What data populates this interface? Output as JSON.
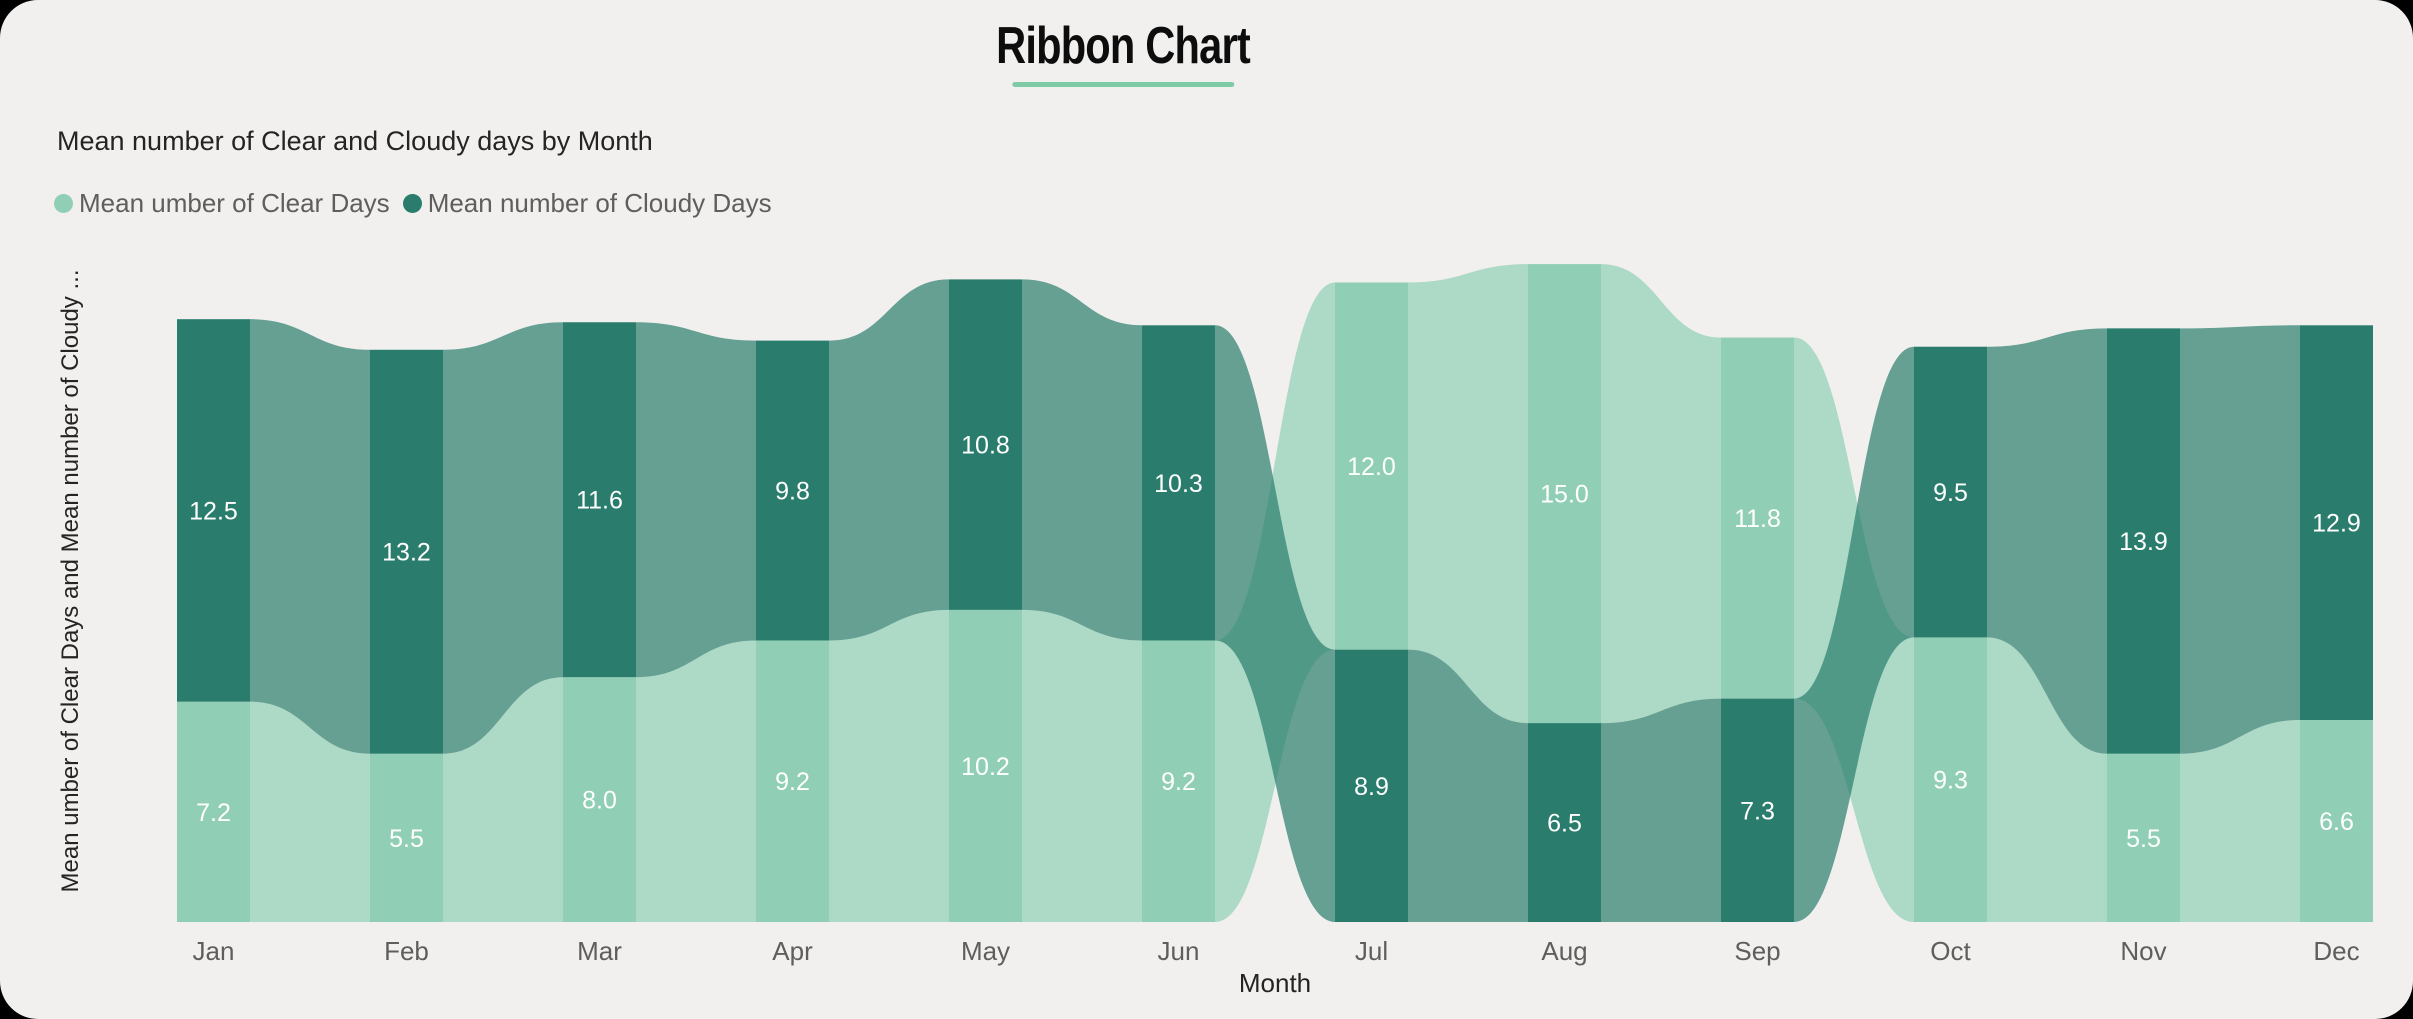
{
  "window": {
    "surface_color": "#F1F0EE",
    "outside_color": "#000000"
  },
  "header": {
    "title": "Ribbon Chart",
    "underline_color": "#7FCBA8"
  },
  "chart_data": {
    "type": "ribbon",
    "title": "Mean number of Clear and Cloudy days by Month",
    "xlabel": "Month",
    "ylabel": "Mean umber of Clear Days and Mean number of Cloudy ...",
    "categories": [
      "Jan",
      "Feb",
      "Mar",
      "Apr",
      "May",
      "Jun",
      "Jul",
      "Aug",
      "Sep",
      "Oct",
      "Nov",
      "Dec"
    ],
    "series": [
      {
        "name": "Mean umber of Clear Days",
        "color": "#90CFB6",
        "values": [
          7.2,
          5.5,
          8.0,
          9.2,
          10.2,
          9.2,
          12.0,
          15.0,
          11.8,
          9.3,
          5.5,
          6.6
        ]
      },
      {
        "name": "Mean number of Cloudy Days",
        "color": "#2A7D6C",
        "values": [
          12.5,
          13.2,
          11.6,
          9.8,
          10.8,
          10.3,
          8.9,
          6.5,
          7.3,
          9.5,
          13.9,
          12.9
        ]
      }
    ],
    "value_label_decimals": 1,
    "value_label_color": "#FFFFFF",
    "connector_opacity": 0.7,
    "ranking": "larger value stacked on top each month",
    "tick_label_color": "#605E5C",
    "axis_title_color": "#252423",
    "legend_position": "top-left",
    "grid": false
  }
}
